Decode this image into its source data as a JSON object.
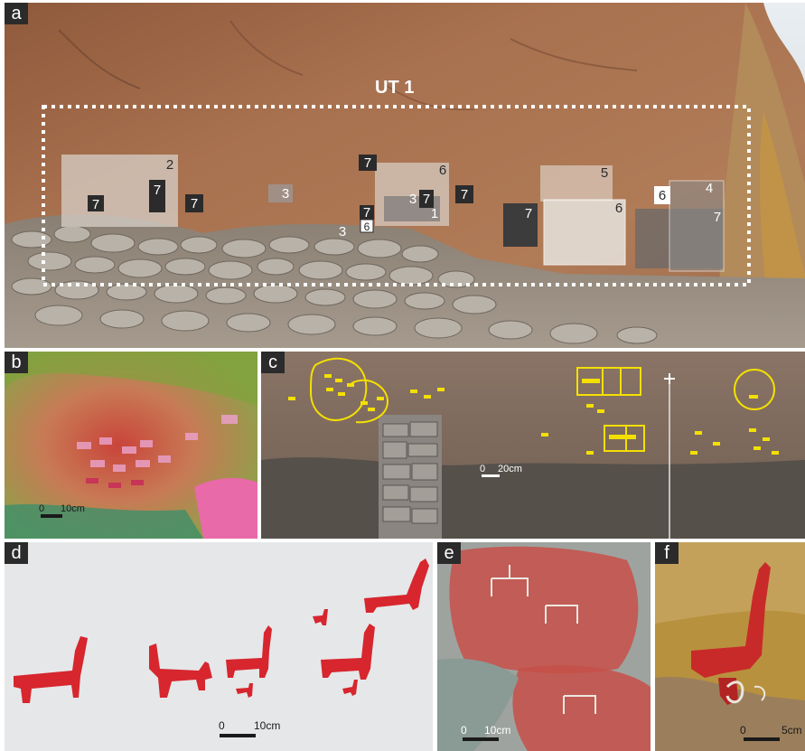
{
  "panels": {
    "a": {
      "label": "a",
      "title": "UT 1",
      "boxes": [
        {
          "text": "2"
        },
        {
          "text": "7"
        },
        {
          "text": "7"
        },
        {
          "text": "7"
        },
        {
          "text": "3"
        },
        {
          "text": "7"
        },
        {
          "text": "6"
        },
        {
          "text": "3"
        },
        {
          "text": "7"
        },
        {
          "text": "1"
        },
        {
          "text": "7"
        },
        {
          "text": "3"
        },
        {
          "text": "6"
        },
        {
          "text": "7"
        },
        {
          "text": "7"
        },
        {
          "text": "5"
        },
        {
          "text": "6"
        },
        {
          "text": "6"
        },
        {
          "text": "4"
        },
        {
          "text": "7"
        }
      ]
    },
    "b": {
      "label": "b",
      "scale_zero": "0",
      "scale_text": "10cm"
    },
    "c": {
      "label": "c",
      "scale_zero": "0",
      "scale_text": "20cm"
    },
    "d": {
      "label": "d",
      "scale_zero": "0",
      "scale_text": "10cm"
    },
    "e": {
      "label": "e",
      "scale_zero": "0",
      "scale_text": "10cm"
    },
    "f": {
      "label": "f",
      "scale_zero": "0",
      "scale_text": "5cm"
    }
  },
  "colors": {
    "rock": "#a8714f",
    "figure_red": "#d7262e",
    "tracing_yellow": "#f4e000",
    "dstretch_green": "#7fa23c",
    "dstretch_pink": "#e86aa8",
    "label_bg": "#2b2b2b"
  }
}
